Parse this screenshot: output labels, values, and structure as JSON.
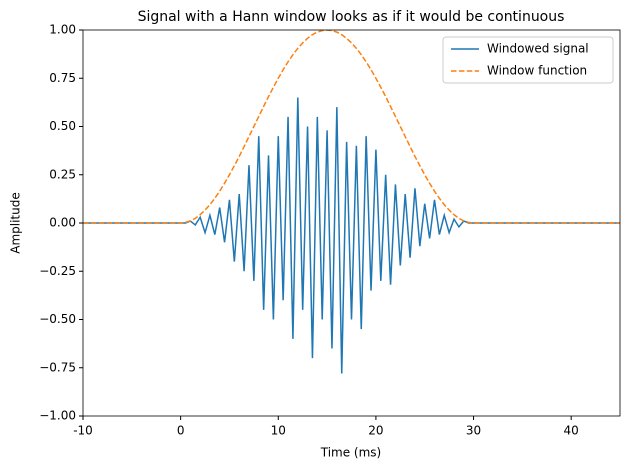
{
  "chart_data": {
    "type": "line",
    "title": "Signal with a Hann window looks as if it would be continuous",
    "xlabel": "Time (ms)",
    "ylabel": "Amplitude",
    "x": [
      -10,
      0,
      0.5,
      1,
      1.5,
      2,
      2.5,
      3,
      3.5,
      4,
      4.5,
      5,
      5.5,
      6,
      6.5,
      7,
      7.5,
      8,
      8.5,
      9,
      9.5,
      10,
      10.5,
      11,
      11.5,
      12,
      12.5,
      13,
      13.5,
      14,
      14.5,
      15,
      15.5,
      16,
      16.5,
      17,
      17.5,
      18,
      18.5,
      19,
      19.5,
      20,
      20.5,
      21,
      21.5,
      22,
      22.5,
      23,
      23.5,
      24,
      24.5,
      25,
      25.5,
      26,
      26.5,
      27,
      27.5,
      28,
      28.5,
      29,
      29.5,
      30,
      45
    ],
    "series": [
      {
        "name": "Windowed signal",
        "color": "#1f77b4",
        "dash": "solid",
        "values": [
          0,
          0,
          0,
          0.01,
          -0.01,
          0.03,
          -0.05,
          0.04,
          -0.06,
          0.08,
          -0.1,
          0.12,
          -0.2,
          0.15,
          -0.25,
          0.3,
          -0.3,
          0.45,
          -0.45,
          0.35,
          -0.5,
          0.45,
          -0.4,
          0.55,
          -0.6,
          0.65,
          -0.45,
          0.5,
          -0.7,
          0.55,
          -0.5,
          0.48,
          -0.65,
          0.6,
          -0.78,
          0.42,
          -0.5,
          0.4,
          -0.55,
          0.45,
          -0.35,
          0.38,
          -0.3,
          0.25,
          -0.32,
          0.2,
          -0.22,
          0.15,
          -0.18,
          0.18,
          -0.12,
          0.1,
          -0.08,
          0.12,
          -0.06,
          0.04,
          -0.05,
          0.02,
          -0.02,
          0.01,
          0,
          0,
          0
        ]
      },
      {
        "name": "Window function",
        "color": "#ff7f0e",
        "dash": "dashed",
        "values": [
          0,
          0,
          0.003,
          0.011,
          0.024,
          0.043,
          0.067,
          0.095,
          0.128,
          0.165,
          0.206,
          0.25,
          0.297,
          0.345,
          0.396,
          0.448,
          0.5,
          0.552,
          0.604,
          0.655,
          0.703,
          0.75,
          0.794,
          0.835,
          0.872,
          0.905,
          0.933,
          0.957,
          0.976,
          0.989,
          0.997,
          1,
          0.997,
          0.989,
          0.976,
          0.957,
          0.933,
          0.905,
          0.872,
          0.835,
          0.794,
          0.75,
          0.703,
          0.655,
          0.604,
          0.552,
          0.5,
          0.448,
          0.396,
          0.345,
          0.297,
          0.25,
          0.206,
          0.165,
          0.128,
          0.095,
          0.067,
          0.043,
          0.024,
          0.011,
          0.003,
          0,
          0
        ]
      }
    ],
    "xlim": [
      -10,
      45
    ],
    "xticks": [
      -10,
      0,
      10,
      20,
      30,
      40
    ],
    "ylim": [
      -1,
      1
    ],
    "yticks": [
      {
        "value": -1,
        "label": "−1.00"
      },
      {
        "value": -0.75,
        "label": "−0.75"
      },
      {
        "value": -0.5,
        "label": "−0.50"
      },
      {
        "value": -0.25,
        "label": "−0.25"
      },
      {
        "value": 0,
        "label": "0.00"
      },
      {
        "value": 0.25,
        "label": "0.25"
      },
      {
        "value": 0.5,
        "label": "0.50"
      },
      {
        "value": 0.75,
        "label": "0.75"
      },
      {
        "value": 1,
        "label": "1.00"
      }
    ],
    "grid": false,
    "legend": "upper right"
  }
}
